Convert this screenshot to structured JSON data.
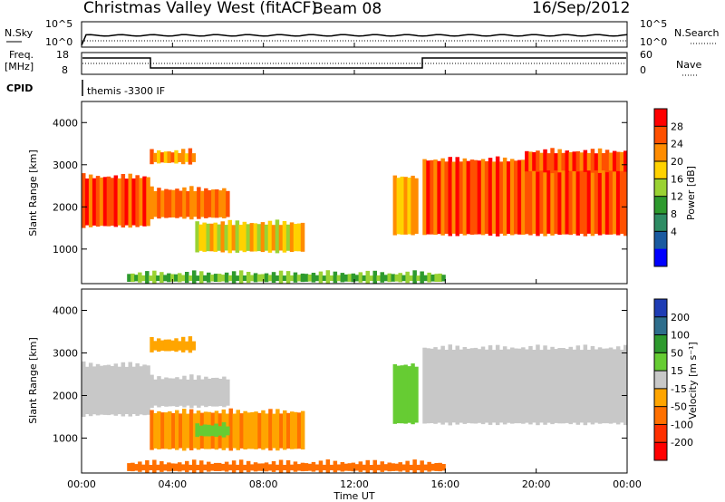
{
  "header": {
    "title_left": "Christmas Valley West (fitACF)",
    "title_center": "Beam 08",
    "date": "16/Sep/2012"
  },
  "sky_panel": {
    "label_left": "N.Sky",
    "label_right": "N.Search",
    "ticks_left": [
      "10^5",
      "10^0"
    ],
    "ticks_right": [
      "10^5",
      "10^0"
    ]
  },
  "freq_panel": {
    "label_left_1": "Freq.",
    "label_left_2": "[MHz]",
    "label_right": "Nave",
    "ticks_left": [
      "18",
      "8"
    ],
    "ticks_right": [
      "60",
      "0"
    ]
  },
  "cpid": {
    "label": "CPID",
    "text": "themis -3300 IF"
  },
  "axes": {
    "ylabel": "Slant Range [km]",
    "xlabel": "Time UT",
    "yticks": [
      "4000",
      "3000",
      "2000",
      "1000"
    ],
    "xticks": [
      "00:00",
      "04:00",
      "08:00",
      "12:00",
      "16:00",
      "20:00",
      "00:00"
    ]
  },
  "power_colorbar": {
    "label": "Power [dB]",
    "ticks": [
      "28",
      "24",
      "20",
      "16",
      "12",
      "8",
      "4"
    ],
    "colors": [
      "#ff0000",
      "#ff5000",
      "#ff8c00",
      "#ffd200",
      "#9ad233",
      "#2e9a2e",
      "#2e8c64",
      "#1a5aa0",
      "#0000ff"
    ]
  },
  "velocity_colorbar": {
    "label": "Velocity [m s⁻¹]",
    "ticks": [
      "200",
      "100",
      "50",
      "15",
      "-15",
      "-50",
      "-100",
      "-200"
    ],
    "colors": [
      "#1e3cb4",
      "#2e6e8c",
      "#2e9a2e",
      "#66cc33",
      "#c8c8c8",
      "#ffa500",
      "#ff7000",
      "#ff3000",
      "#ff0000"
    ]
  },
  "chart_data": {
    "type": "heatmap",
    "x_range_hours": [
      0,
      24
    ],
    "y_range_km": [
      180,
      4500
    ],
    "panels": [
      {
        "name": "Power [dB]",
        "echo_regions": [
          {
            "t0": 0.0,
            "t1": 3.0,
            "r0": 1500,
            "r1": 2800,
            "value": 26
          },
          {
            "t0": 3.0,
            "t1": 6.5,
            "r0": 1700,
            "r1": 2500,
            "value": 24
          },
          {
            "t0": 3.0,
            "t1": 5.0,
            "r0": 3000,
            "r1": 3400,
            "value": 22
          },
          {
            "t0": 5.0,
            "t1": 9.8,
            "r0": 900,
            "r1": 1700,
            "value": 18
          },
          {
            "t0": 13.7,
            "t1": 14.8,
            "r0": 1300,
            "r1": 2800,
            "value": 20
          },
          {
            "t0": 15.0,
            "t1": 24.0,
            "r0": 1300,
            "r1": 3200,
            "value": 26
          },
          {
            "t0": 19.5,
            "t1": 24.0,
            "r0": 2800,
            "r1": 3400,
            "value": 26
          },
          {
            "t0": 2.0,
            "t1": 16.0,
            "r0": 180,
            "r1": 500,
            "value": 12
          }
        ]
      },
      {
        "name": "Velocity [m s-1]",
        "echo_regions": [
          {
            "t0": 0.0,
            "t1": 3.0,
            "r0": 1500,
            "r1": 2800,
            "value": 0
          },
          {
            "t0": 3.0,
            "t1": 6.5,
            "r0": 1700,
            "r1": 2500,
            "value": 0
          },
          {
            "t0": 3.0,
            "t1": 5.0,
            "r0": 3000,
            "r1": 3400,
            "value": -40
          },
          {
            "t0": 3.0,
            "t1": 9.8,
            "r0": 700,
            "r1": 1700,
            "value": -45
          },
          {
            "t0": 5.0,
            "t1": 6.5,
            "r0": 1000,
            "r1": 1400,
            "value": 30
          },
          {
            "t0": 13.7,
            "t1": 14.8,
            "r0": 1300,
            "r1": 2800,
            "value": 30
          },
          {
            "t0": 15.0,
            "t1": 24.0,
            "r0": 1300,
            "r1": 3200,
            "value": 0
          },
          {
            "t0": 2.0,
            "t1": 16.0,
            "r0": 180,
            "r1": 500,
            "value": -60
          }
        ]
      }
    ]
  }
}
